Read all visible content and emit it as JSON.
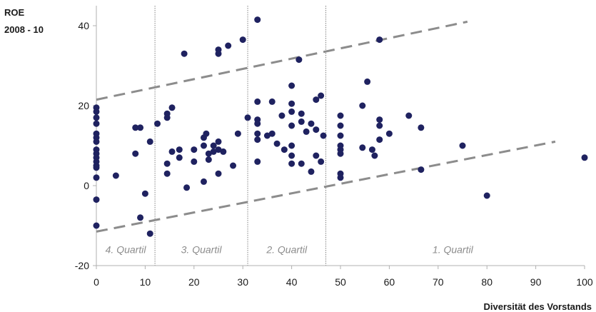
{
  "chart_data": {
    "type": "scatter",
    "title": "",
    "ylabel_lines": [
      "ROE",
      "2008 - 10"
    ],
    "xlabel": "Diversität des Vorstands",
    "xlim": [
      0,
      100
    ],
    "ylim": [
      -20,
      45
    ],
    "xticks": [
      0,
      10,
      20,
      30,
      40,
      50,
      60,
      70,
      80,
      90,
      100
    ],
    "yticks": [
      -20,
      0,
      20,
      40
    ],
    "grid": false,
    "colors": {
      "points": "#1f2260",
      "trend": "#8c8c8c",
      "divider": "#666666",
      "axis": "#b0b0b0",
      "quartil_label": "#8c8c8c"
    },
    "quartile_dividers": [
      12,
      31,
      47
    ],
    "quartile_labels": [
      {
        "text": "4. Quartil",
        "x": 6
      },
      {
        "text": "3. Quartil",
        "x": 21.5
      },
      {
        "text": "2. Quartil",
        "x": 39
      },
      {
        "text": "1. Quartil",
        "x": 73
      }
    ],
    "quartile_label_y": -16,
    "trend_lines": [
      {
        "name": "upper",
        "x": [
          0,
          76
        ],
        "y": [
          21.5,
          41
        ]
      },
      {
        "name": "lower",
        "x": [
          0,
          94
        ],
        "y": [
          -11.5,
          11
        ]
      }
    ],
    "series": [
      {
        "points": [
          [
            0,
            19.5
          ],
          [
            0,
            18.5
          ],
          [
            0,
            17
          ],
          [
            0,
            15.5
          ],
          [
            0,
            13
          ],
          [
            0,
            12
          ],
          [
            0,
            11
          ],
          [
            0,
            9
          ],
          [
            0,
            8
          ],
          [
            0,
            7
          ],
          [
            0,
            6
          ],
          [
            0,
            5
          ],
          [
            0,
            4.5
          ],
          [
            0,
            2
          ],
          [
            0,
            -3.5
          ],
          [
            0,
            -10
          ],
          [
            4,
            2.5
          ],
          [
            8,
            8
          ],
          [
            8,
            14.5
          ],
          [
            9,
            14.5
          ],
          [
            9,
            -8
          ],
          [
            10,
            -2
          ],
          [
            11,
            11
          ],
          [
            11,
            -12
          ],
          [
            12.5,
            15.5
          ],
          [
            14.5,
            18
          ],
          [
            14.5,
            17
          ],
          [
            14.5,
            5.5
          ],
          [
            14.5,
            3
          ],
          [
            15.5,
            19.5
          ],
          [
            15.5,
            8.5
          ],
          [
            17,
            9
          ],
          [
            17,
            7
          ],
          [
            18,
            33
          ],
          [
            18.5,
            -0.5
          ],
          [
            20,
            6
          ],
          [
            20,
            9
          ],
          [
            22,
            12
          ],
          [
            22,
            10
          ],
          [
            22,
            1
          ],
          [
            22.5,
            13
          ],
          [
            23,
            8
          ],
          [
            23,
            6.5
          ],
          [
            24,
            10
          ],
          [
            24,
            8.5
          ],
          [
            25,
            34
          ],
          [
            25,
            33
          ],
          [
            25,
            11
          ],
          [
            25,
            9
          ],
          [
            25,
            3
          ],
          [
            26,
            8.5
          ],
          [
            27,
            35
          ],
          [
            28,
            5
          ],
          [
            29,
            13
          ],
          [
            30,
            36.5
          ],
          [
            31,
            17
          ],
          [
            33,
            41.5
          ],
          [
            33,
            21
          ],
          [
            33,
            16.5
          ],
          [
            33,
            15.5
          ],
          [
            33,
            13
          ],
          [
            33,
            11.5
          ],
          [
            33,
            6
          ],
          [
            35,
            12.5
          ],
          [
            36,
            21
          ],
          [
            36,
            13
          ],
          [
            37,
            10.5
          ],
          [
            38,
            17.5
          ],
          [
            38.5,
            9
          ],
          [
            40,
            25
          ],
          [
            40,
            20.5
          ],
          [
            40,
            18.5
          ],
          [
            40,
            15
          ],
          [
            40,
            10
          ],
          [
            40,
            7.5
          ],
          [
            40,
            5.5
          ],
          [
            41.5,
            31.5
          ],
          [
            42,
            18
          ],
          [
            42,
            16
          ],
          [
            42,
            5.5
          ],
          [
            43,
            13.5
          ],
          [
            44,
            15.5
          ],
          [
            44,
            3.5
          ],
          [
            45,
            21.5
          ],
          [
            45,
            14
          ],
          [
            45,
            7.5
          ],
          [
            46,
            6
          ],
          [
            46,
            22.5
          ],
          [
            46.5,
            12.5
          ],
          [
            50,
            17.5
          ],
          [
            50,
            15
          ],
          [
            50,
            12.5
          ],
          [
            50,
            10
          ],
          [
            50,
            9
          ],
          [
            50,
            8
          ],
          [
            50,
            3
          ],
          [
            50,
            2
          ],
          [
            54.5,
            20
          ],
          [
            54.5,
            9.5
          ],
          [
            55.5,
            26
          ],
          [
            56.5,
            9
          ],
          [
            57,
            7.5
          ],
          [
            58,
            36.5
          ],
          [
            58,
            16.5
          ],
          [
            58,
            15
          ],
          [
            58,
            11.5
          ],
          [
            60,
            13
          ],
          [
            64,
            17.5
          ],
          [
            66.5,
            14.5
          ],
          [
            66.5,
            4
          ],
          [
            75,
            10
          ],
          [
            80,
            -2.5
          ],
          [
            100,
            7
          ]
        ]
      }
    ]
  }
}
